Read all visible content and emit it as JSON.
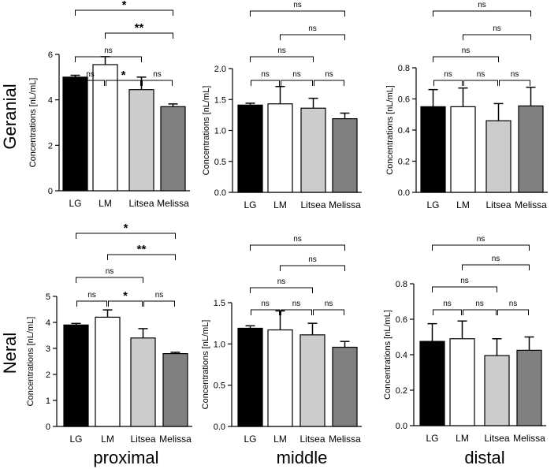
{
  "rows": [
    "Geranial",
    "Neral"
  ],
  "columns": [
    "proximal",
    "middle",
    "distal"
  ],
  "colors": {
    "LG": "#000000",
    "LM": "#ffffff",
    "Litsea": "#cccccc",
    "Melissa": "#808080",
    "axis": "#000000"
  },
  "chart_data": [
    {
      "id": "geranial-proximal",
      "type": "bar",
      "row": "Geranial",
      "column": "proximal",
      "categories": [
        "LG",
        "LM",
        "Litsea",
        "Melissa"
      ],
      "values": [
        5.0,
        5.55,
        4.45,
        3.7
      ],
      "errors": [
        0.08,
        0.35,
        0.55,
        0.12
      ],
      "ylabel": "Concentrations [nL/mL]",
      "ylim": [
        0,
        6
      ],
      "yticks": [
        "0",
        "2",
        "4",
        "6"
      ],
      "ytick_values": [
        0,
        2,
        4,
        6
      ],
      "comparisons": [
        {
          "from": "LG",
          "to": "LM",
          "label": "ns"
        },
        {
          "from": "LM",
          "to": "Litsea",
          "label": "*"
        },
        {
          "from": "Litsea",
          "to": "Melissa",
          "label": "ns"
        },
        {
          "from": "LG",
          "to": "Litsea",
          "label": "ns"
        },
        {
          "from": "LM",
          "to": "Melissa",
          "label": "**"
        },
        {
          "from": "LG",
          "to": "Melissa",
          "label": "*"
        }
      ]
    },
    {
      "id": "geranial-middle",
      "type": "bar",
      "row": "Geranial",
      "column": "middle",
      "categories": [
        "LG",
        "LM",
        "Litsea",
        "Melissa"
      ],
      "values": [
        1.41,
        1.43,
        1.36,
        1.19
      ],
      "errors": [
        0.03,
        0.28,
        0.16,
        0.09
      ],
      "ylabel": "Concentrations [nL/mL]",
      "ylim": [
        0,
        2
      ],
      "yticks": [
        "0.0",
        "0.5",
        "1.0",
        "1.5",
        "2.0"
      ],
      "ytick_values": [
        0,
        0.5,
        1.0,
        1.5,
        2.0
      ],
      "comparisons": [
        {
          "from": "LG",
          "to": "LM",
          "label": "ns"
        },
        {
          "from": "LM",
          "to": "Litsea",
          "label": "ns"
        },
        {
          "from": "Litsea",
          "to": "Melissa",
          "label": "ns"
        },
        {
          "from": "LG",
          "to": "Litsea",
          "label": "ns"
        },
        {
          "from": "LM",
          "to": "Melissa",
          "label": "ns"
        },
        {
          "from": "LG",
          "to": "Melissa",
          "label": "ns"
        }
      ]
    },
    {
      "id": "geranial-distal",
      "type": "bar",
      "row": "Geranial",
      "column": "distal",
      "categories": [
        "LG",
        "LM",
        "Litsea",
        "Melissa"
      ],
      "values": [
        0.55,
        0.55,
        0.46,
        0.555
      ],
      "errors": [
        0.11,
        0.12,
        0.11,
        0.12
      ],
      "ylabel": "Concentrations [nL/mL]",
      "ylim": [
        0,
        0.8
      ],
      "yticks": [
        "0.0",
        "0.2",
        "0.4",
        "0.6",
        "0.8"
      ],
      "ytick_values": [
        0,
        0.2,
        0.4,
        0.6,
        0.8
      ],
      "comparisons": [
        {
          "from": "LG",
          "to": "LM",
          "label": "ns"
        },
        {
          "from": "LM",
          "to": "Litsea",
          "label": "ns"
        },
        {
          "from": "Litsea",
          "to": "Melissa",
          "label": "ns"
        },
        {
          "from": "LG",
          "to": "Litsea",
          "label": "ns"
        },
        {
          "from": "LM",
          "to": "Melissa",
          "label": "ns"
        },
        {
          "from": "LG",
          "to": "Melissa",
          "label": "ns"
        }
      ]
    },
    {
      "id": "neral-proximal",
      "type": "bar",
      "row": "Neral",
      "column": "proximal",
      "categories": [
        "LG",
        "LM",
        "Litsea",
        "Melissa"
      ],
      "values": [
        3.9,
        4.2,
        3.4,
        2.8
      ],
      "errors": [
        0.06,
        0.28,
        0.36,
        0.05
      ],
      "ylabel": "Concentrations [nL/mL]",
      "ylim": [
        0,
        5
      ],
      "yticks": [
        "0",
        "1",
        "2",
        "3",
        "4",
        "5"
      ],
      "ytick_values": [
        0,
        1,
        2,
        3,
        4,
        5
      ],
      "comparisons": [
        {
          "from": "LG",
          "to": "LM",
          "label": "ns"
        },
        {
          "from": "LM",
          "to": "Litsea",
          "label": "*"
        },
        {
          "from": "Litsea",
          "to": "Melissa",
          "label": "ns"
        },
        {
          "from": "LG",
          "to": "Litsea",
          "label": "ns"
        },
        {
          "from": "LM",
          "to": "Melissa",
          "label": "**"
        },
        {
          "from": "LG",
          "to": "Melissa",
          "label": "*"
        }
      ]
    },
    {
      "id": "neral-middle",
      "type": "bar",
      "row": "Neral",
      "column": "middle",
      "categories": [
        "LG",
        "LM",
        "Litsea",
        "Melissa"
      ],
      "values": [
        1.19,
        1.17,
        1.11,
        0.96
      ],
      "errors": [
        0.03,
        0.23,
        0.14,
        0.07
      ],
      "ylabel": "Concentrations [nL/mL]",
      "ylim": [
        0,
        1.5
      ],
      "yticks": [
        "0.0",
        "0.5",
        "1.0",
        "1.5"
      ],
      "ytick_values": [
        0,
        0.5,
        1.0,
        1.5
      ],
      "comparisons": [
        {
          "from": "LG",
          "to": "LM",
          "label": "ns"
        },
        {
          "from": "LM",
          "to": "Litsea",
          "label": "ns"
        },
        {
          "from": "Litsea",
          "to": "Melissa",
          "label": "ns"
        },
        {
          "from": "LG",
          "to": "Litsea",
          "label": "ns"
        },
        {
          "from": "LM",
          "to": "Melissa",
          "label": "ns"
        },
        {
          "from": "LG",
          "to": "Melissa",
          "label": "ns"
        }
      ]
    },
    {
      "id": "neral-distal",
      "type": "bar",
      "row": "Neral",
      "column": "distal",
      "categories": [
        "LG",
        "LM",
        "Litsea",
        "Melissa"
      ],
      "values": [
        0.475,
        0.49,
        0.395,
        0.425
      ],
      "errors": [
        0.1,
        0.1,
        0.095,
        0.075
      ],
      "ylabel": "Concentrations [nL/mL]",
      "ylim": [
        0,
        0.8
      ],
      "yticks": [
        "0.0",
        "0.2",
        "0.4",
        "0.6",
        "0.8"
      ],
      "ytick_values": [
        0,
        0.2,
        0.4,
        0.6,
        0.8
      ],
      "comparisons": [
        {
          "from": "LG",
          "to": "LM",
          "label": "ns"
        },
        {
          "from": "LM",
          "to": "Litsea",
          "label": "ns"
        },
        {
          "from": "Litsea",
          "to": "Melissa",
          "label": "ns"
        },
        {
          "from": "LG",
          "to": "Litsea",
          "label": "ns"
        },
        {
          "from": "LM",
          "to": "Melissa",
          "label": "ns"
        },
        {
          "from": "LG",
          "to": "Melissa",
          "label": "ns"
        }
      ]
    }
  ]
}
